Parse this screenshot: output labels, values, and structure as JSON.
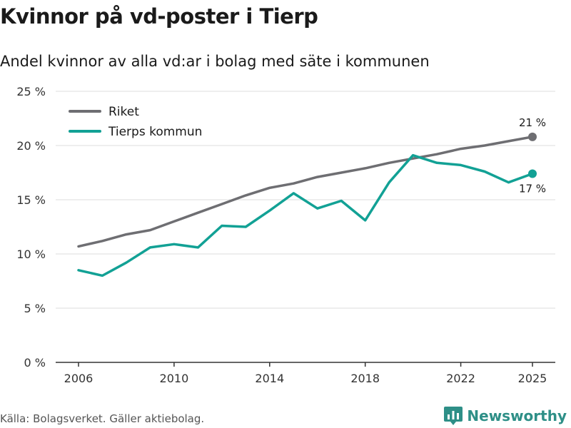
{
  "header": {
    "title": "Kvinnor på vd-poster i Tierp",
    "subtitle": "Andel kvinnor av alla vd:ar i bolag med säte i kommunen"
  },
  "footer": {
    "source": "Källa: Bolagsverket. Gäller aktiebolag.",
    "brand": "Newsworthy",
    "brand_icon": "bar-chart-logo-icon"
  },
  "colors": {
    "riket": "#6e6e72",
    "tierp": "#12a195",
    "grid": "#dddddd",
    "axis": "#333333",
    "brand": "#2e8f87"
  },
  "chart_data": {
    "type": "line",
    "title": "Kvinnor på vd-poster i Tierp",
    "subtitle": "Andel kvinnor av alla vd:ar i bolag med säte i kommunen",
    "xlabel": "",
    "ylabel": "",
    "x": [
      2006,
      2007,
      2008,
      2009,
      2010,
      2011,
      2012,
      2013,
      2014,
      2015,
      2016,
      2017,
      2018,
      2019,
      2020,
      2021,
      2022,
      2023,
      2024,
      2025
    ],
    "xlim": [
      2006,
      2025
    ],
    "ylim": [
      0,
      25
    ],
    "xticks": [
      2006,
      2010,
      2014,
      2018,
      2022,
      2025
    ],
    "xtick_labels": [
      "2006",
      "2010",
      "2014",
      "2018",
      "2022",
      "2025"
    ],
    "yticks": [
      0,
      5,
      10,
      15,
      20,
      25
    ],
    "ytick_labels": [
      "0 %",
      "5 %",
      "10 %",
      "15 %",
      "20 %",
      "25 %"
    ],
    "grid": true,
    "legend_position": "top-left",
    "series": [
      {
        "name": "Riket",
        "color": "#6e6e72",
        "values": [
          10.7,
          11.2,
          11.8,
          12.2,
          13.0,
          13.8,
          14.6,
          15.4,
          16.1,
          16.5,
          17.1,
          17.5,
          17.9,
          18.4,
          18.8,
          19.2,
          19.7,
          20.0,
          20.4,
          20.8
        ],
        "end_label": "21 %"
      },
      {
        "name": "Tierps kommun",
        "color": "#12a195",
        "values": [
          8.5,
          8.0,
          9.2,
          10.6,
          10.9,
          10.6,
          12.6,
          12.5,
          14.0,
          15.6,
          14.2,
          14.9,
          13.1,
          16.6,
          19.1,
          18.4,
          18.2,
          17.6,
          16.6,
          17.4
        ],
        "end_label": "17 %"
      }
    ]
  }
}
